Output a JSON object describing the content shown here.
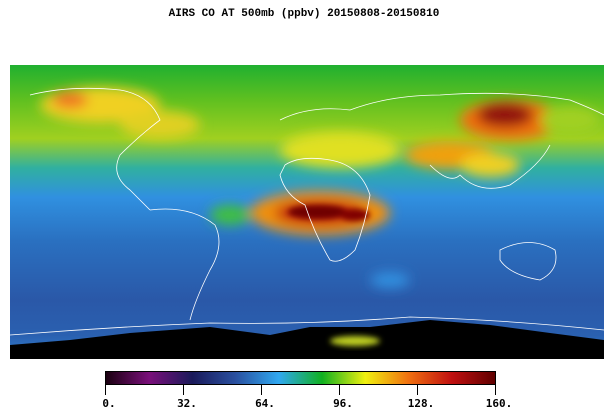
{
  "title": "AIRS CO AT 500mb (ppbv) 20150808-20150810",
  "colorbar": {
    "min": 0,
    "max": 160,
    "ticks": [
      "0.",
      "32.",
      "64.",
      "96.",
      "128.",
      "160."
    ],
    "colors": [
      "#1a0010",
      "#7a0f7a",
      "#1a1a5a",
      "#2a50a0",
      "#30a8f0",
      "#10b020",
      "#f0f010",
      "#f07010",
      "#c01010",
      "#600000"
    ]
  },
  "map": {
    "projection": "cylindrical equidistant",
    "high_co_regions": [
      "Central Africa",
      "Eastern Siberia",
      "East Asia",
      "North America (Canada)"
    ],
    "missing_data_color": "#000000"
  }
}
